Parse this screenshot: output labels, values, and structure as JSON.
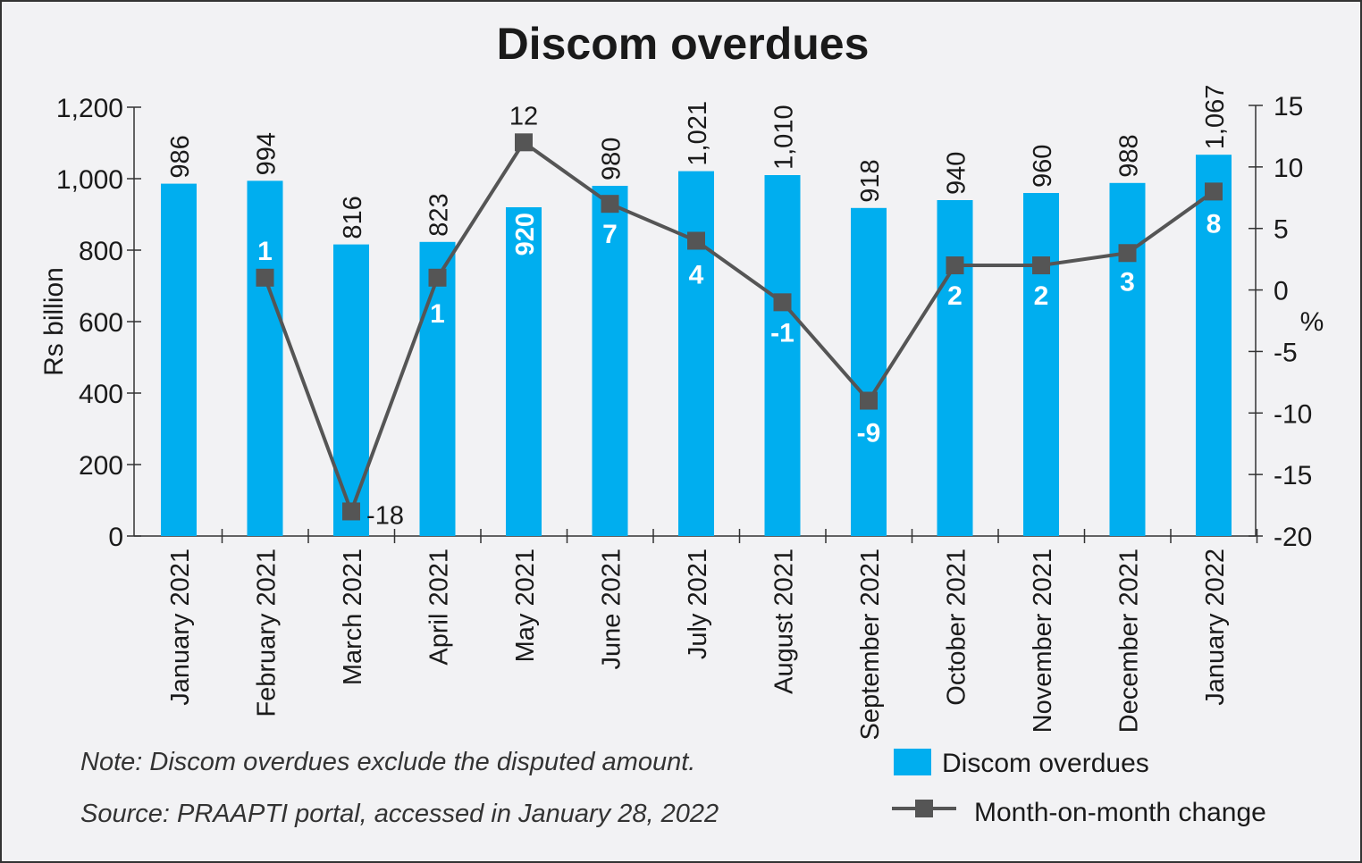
{
  "chart_data": {
    "type": "bar+line",
    "title": "Discom overdues",
    "ylabel": "Rs billion",
    "y2label": "%",
    "ylim": [
      0,
      1200
    ],
    "y_ticks": [
      "0",
      "200",
      "400",
      "600",
      "800",
      "1,000",
      "1,200"
    ],
    "y2lim": [
      -20,
      15
    ],
    "y2_ticks": [
      "-20",
      "-15",
      "-10",
      "-5",
      "0",
      "5",
      "10",
      "15"
    ],
    "categories": [
      "January 2021",
      "February 2021",
      "March 2021",
      "April 2021",
      "May 2021",
      "June 2021",
      "July 2021",
      "August 2021",
      "September 2021",
      "October 2021",
      "November 2021",
      "December 2021",
      "January 2022"
    ],
    "series": [
      {
        "name": "Discom overdues",
        "type": "bar",
        "axis": "left",
        "color": "#00aeef",
        "values": [
          986,
          994,
          816,
          823,
          920,
          980,
          1021,
          1010,
          918,
          940,
          960,
          988,
          1067
        ],
        "labels": [
          "986",
          "994",
          "816",
          "823",
          "920",
          "980",
          "1,021",
          "1,010",
          "918",
          "940",
          "960",
          "988",
          "1,067"
        ]
      },
      {
        "name": "Month-on-month change",
        "type": "line",
        "axis": "right",
        "color": "#555555",
        "values": [
          null,
          1,
          -18,
          1,
          12,
          7,
          4,
          -1,
          -9,
          2,
          2,
          3,
          8
        ],
        "labels": [
          "",
          "1",
          "-18",
          "1",
          "12",
          "7",
          "4",
          "-1",
          "-9",
          "2",
          "2",
          "3",
          "8"
        ]
      }
    ],
    "grid": false,
    "legend": "bottom-right",
    "note": "Note: Discom overdues exclude the disputed amount.",
    "source": "Source: PRAAPTI portal, accessed in January 28, 2022"
  }
}
